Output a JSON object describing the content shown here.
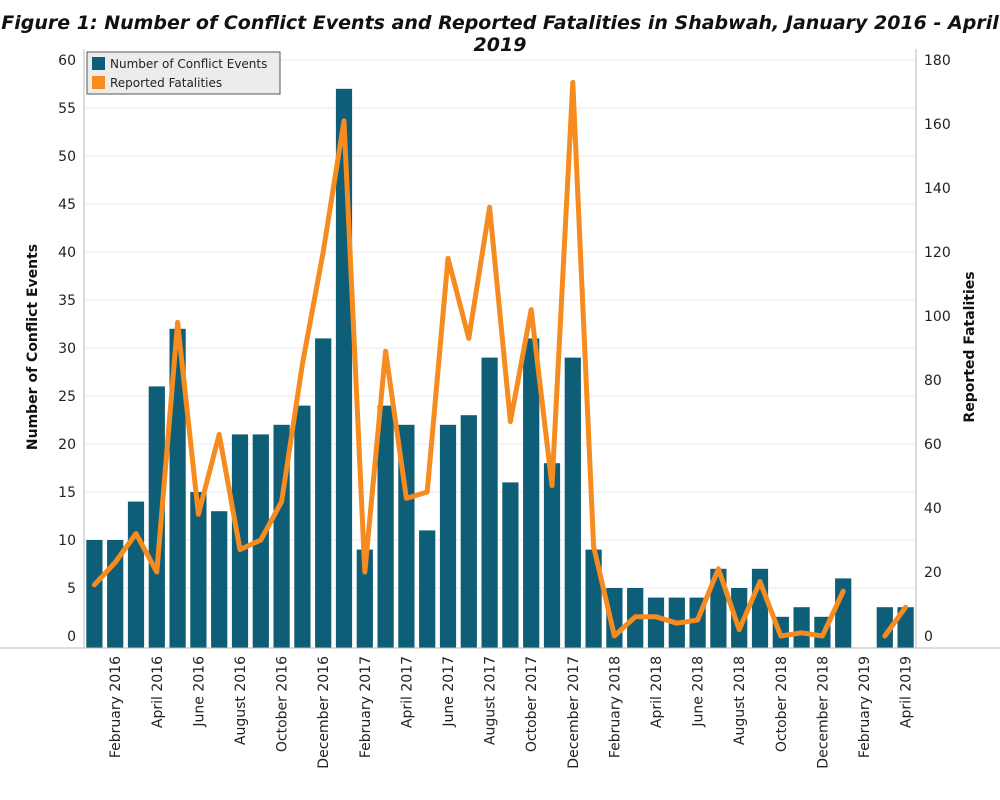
{
  "chart_data": {
    "type": "bar",
    "title": "Figure 1: Number of Conflict Events and Reported Fatalities in Shabwah, January 2016 - April 2019",
    "ylabel": "Number of Conflict Events",
    "y2label": "Reported Fatalities",
    "ylim": [
      0,
      60
    ],
    "y2lim": [
      0,
      180
    ],
    "yticks": [
      0,
      5,
      10,
      15,
      20,
      25,
      30,
      35,
      40,
      45,
      50,
      55,
      60
    ],
    "y2ticks": [
      0,
      20,
      40,
      60,
      80,
      100,
      120,
      140,
      160,
      180
    ],
    "x": [
      "January 2016",
      "February 2016",
      "March 2016",
      "April 2016",
      "May 2016",
      "June 2016",
      "July 2016",
      "August 2016",
      "September 2016",
      "October 2016",
      "November 2016",
      "December 2016",
      "January 2017",
      "February 2017",
      "March 2017",
      "April 2017",
      "May 2017",
      "June 2017",
      "July 2017",
      "August 2017",
      "September 2017",
      "October 2017",
      "November 2017",
      "December 2017",
      "January 2018",
      "February 2018",
      "March 2018",
      "April 2018",
      "May 2018",
      "June 2018",
      "July 2018",
      "August 2018",
      "September 2018",
      "October 2018",
      "November 2018",
      "December 2018",
      "January 2019",
      "February 2019",
      "March 2019",
      "April 2019"
    ],
    "x_tick_labels": [
      "February 2016",
      "April 2016",
      "June 2016",
      "August 2016",
      "October 2016",
      "December 2016",
      "February 2017",
      "April 2017",
      "June 2017",
      "August 2017",
      "October 2017",
      "December 2017",
      "February 2018",
      "April 2018",
      "June 2018",
      "August 2018",
      "October 2018",
      "December 2018",
      "February 2019",
      "April 2019"
    ],
    "legend_position": "top-left",
    "grid": true,
    "series": [
      {
        "name": "Number of Conflict Events",
        "type": "bar",
        "axis": "left",
        "color": "#0f5e78",
        "values": [
          10,
          10,
          14,
          26,
          32,
          15,
          13,
          21,
          21,
          22,
          24,
          31,
          57,
          9,
          24,
          22,
          11,
          22,
          23,
          29,
          16,
          31,
          18,
          29,
          9,
          5,
          5,
          4,
          4,
          4,
          7,
          5,
          7,
          2,
          3,
          2,
          6,
          0,
          3,
          3
        ]
      },
      {
        "name": "Reported Fatalities",
        "type": "line",
        "axis": "right",
        "color": "#f68b1f",
        "values": [
          16,
          23,
          32,
          20,
          98,
          38,
          63,
          27,
          30,
          42,
          85,
          120,
          161,
          20,
          89,
          43,
          45,
          118,
          93,
          134,
          67,
          102,
          47,
          173,
          28,
          0,
          6,
          6,
          4,
          5,
          21,
          2,
          17,
          0,
          1,
          0,
          14,
          null,
          0,
          9
        ]
      }
    ]
  }
}
